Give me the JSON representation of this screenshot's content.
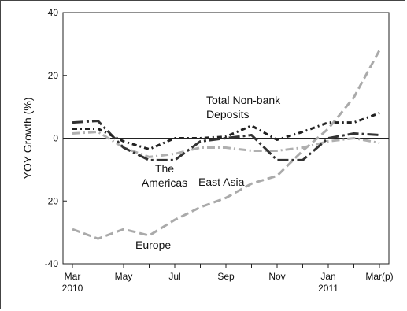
{
  "chart_data": {
    "type": "line",
    "title": "",
    "xlabel": "",
    "ylabel": "YOY Growth (%)",
    "ylim": [
      -40,
      40
    ],
    "yticks": [
      "40",
      "20",
      "0",
      "-20",
      "-40"
    ],
    "x": [
      "2010-03",
      "2010-04",
      "2010-05",
      "2010-06",
      "2010-07",
      "2010-08",
      "2010-09",
      "2010-10",
      "2010-11",
      "2010-12",
      "2011-01",
      "2011-02",
      "2011-03"
    ],
    "xtick_labels": [
      {
        "x": "2010-03",
        "line1": "Mar",
        "line2": "2010"
      },
      {
        "x": "2010-05",
        "line1": "May",
        "line2": ""
      },
      {
        "x": "2010-07",
        "line1": "Jul",
        "line2": ""
      },
      {
        "x": "2010-09",
        "line1": "Sep",
        "line2": ""
      },
      {
        "x": "2010-11",
        "line1": "Nov",
        "line2": ""
      },
      {
        "x": "2011-01",
        "line1": "Jan",
        "line2": "2011"
      },
      {
        "x": "2011-03",
        "line1": "Mar(p)",
        "line2": ""
      }
    ],
    "grid": false,
    "legend": "none",
    "series": [
      {
        "key": "europe",
        "label_lines": [
          "Europe"
        ],
        "color": "#aaaaaa",
        "dash": "10 5",
        "width": 3,
        "values": [
          -29,
          -32,
          -29,
          -31,
          -26,
          -22,
          -19,
          -14.5,
          -12,
          -4,
          3,
          13,
          28
        ]
      },
      {
        "key": "east_asia",
        "label_lines": [
          "East Asia"
        ],
        "color": "#b0b0b0",
        "dash": "10 4 2 4",
        "width": 3,
        "values": [
          1.5,
          2,
          -3,
          -6,
          -5,
          -3,
          -3,
          -4,
          -4,
          -3,
          -1,
          0,
          -1.5
        ]
      },
      {
        "key": "americas",
        "label_lines": [
          "The",
          "Americas"
        ],
        "color": "#333333",
        "dash": "14 4 3 4",
        "width": 3,
        "values": [
          5,
          5.5,
          -3,
          -7,
          -7,
          -1,
          0,
          1,
          -7,
          -7,
          0,
          1.5,
          1
        ]
      },
      {
        "key": "total_nonbank",
        "label_lines": [
          "Total Non-bank",
          "Deposits"
        ],
        "color": "#222222",
        "dash": "6 4 2 4",
        "width": 3,
        "values": [
          3,
          3,
          -1,
          -3.5,
          0,
          0,
          0.5,
          4,
          -0.5,
          2,
          5,
          5,
          8
        ]
      }
    ]
  }
}
